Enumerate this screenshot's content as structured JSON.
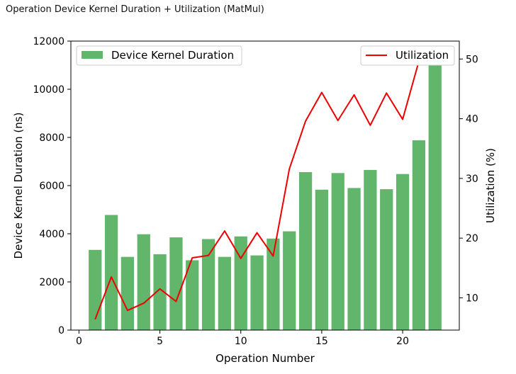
{
  "page": {
    "title": "Operation Device Kernel Duration + Utilization (MatMul)"
  },
  "colors": {
    "bar": "#62b66b",
    "line": "#ee0000",
    "axis": "#000000"
  },
  "chart_data": {
    "type": "bar",
    "title": "Operation Device Kernel Duration + Utilization (MatMul)",
    "xlabel": "Operation Number",
    "ylabel": "Device Kernel Duration (ns)",
    "y2label": "Utilization (%)",
    "xlim": [
      -0.5,
      23.5
    ],
    "ylim": [
      0,
      12000
    ],
    "y2lim": [
      4.6,
      53
    ],
    "xticks": [
      0,
      5,
      10,
      15,
      20
    ],
    "yticks": [
      0,
      2000,
      4000,
      6000,
      8000,
      10000,
      12000
    ],
    "y2ticks": [
      10,
      20,
      30,
      40,
      50
    ],
    "grid": false,
    "x": [
      1,
      2,
      3,
      4,
      5,
      6,
      7,
      8,
      9,
      10,
      11,
      12,
      13,
      14,
      15,
      16,
      17,
      18,
      19,
      20,
      21,
      22
    ],
    "series": [
      {
        "name": "Device Kernel Duration",
        "type": "bar",
        "axis": "left",
        "legend": "top-left",
        "values": [
          3330,
          4780,
          3040,
          3980,
          3150,
          3850,
          2900,
          3780,
          3040,
          3890,
          3100,
          3800,
          4100,
          6560,
          5830,
          6520,
          5900,
          6650,
          5850,
          6480,
          7880,
          11600
        ]
      },
      {
        "name": "Utilization",
        "type": "line",
        "axis": "right",
        "legend": "top-right",
        "values": [
          6.4,
          13.5,
          7.9,
          9.1,
          11.5,
          9.4,
          16.7,
          17.1,
          21.2,
          16.6,
          20.9,
          17.0,
          31.6,
          39.6,
          44.4,
          39.7,
          44.0,
          38.9,
          44.3,
          39.9,
          49.6,
          51.3
        ]
      }
    ]
  }
}
